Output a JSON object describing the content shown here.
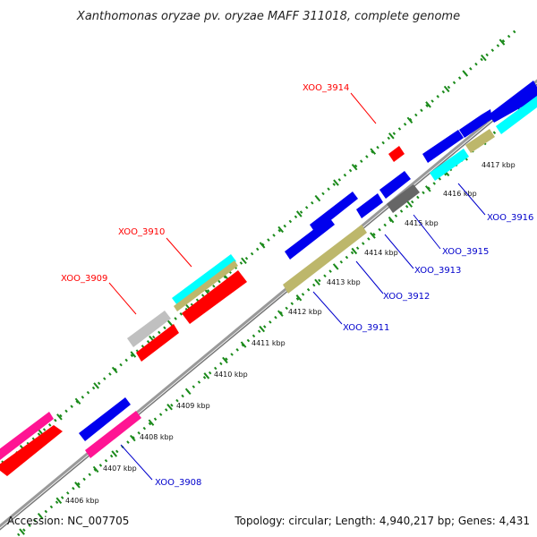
{
  "title": "Xanthomonas oryzae pv. oryzae MAFF 311018, complete genome",
  "footer": {
    "accession": "Accession: NC_007705",
    "stats": "Topology: circular; Length: 4,940,217 bp; Genes: 4,431"
  },
  "colors": {
    "backbone": "#888888",
    "ticks": "#1a8a1a",
    "label_top": "#ff0000",
    "label_bottom": "#0000cc",
    "blue": "#0000ee",
    "red": "#ff0000",
    "cyan": "#00ffff",
    "khaki": "#bdb76b",
    "gray": "#c0c0c0",
    "darkgray": "#666666",
    "pink": "#ff1493"
  },
  "kbp_labels": [
    "4406 kbp",
    "4407 kbp",
    "4408 kbp",
    "4409 kbp",
    "4410 kbp",
    "4411 kbp",
    "4412 kbp",
    "4413 kbp",
    "4414 kbp",
    "4415 kbp",
    "4416 kbp",
    "4417 kbp"
  ],
  "gene_labels_top": [
    "XOO_3909",
    "XOO_3910",
    "XOO_3914"
  ],
  "gene_labels_bottom": [
    "XOO_3908",
    "XOO_3911",
    "XOO_3912",
    "XOO_3913",
    "XOO_3915",
    "XOO_3916"
  ]
}
